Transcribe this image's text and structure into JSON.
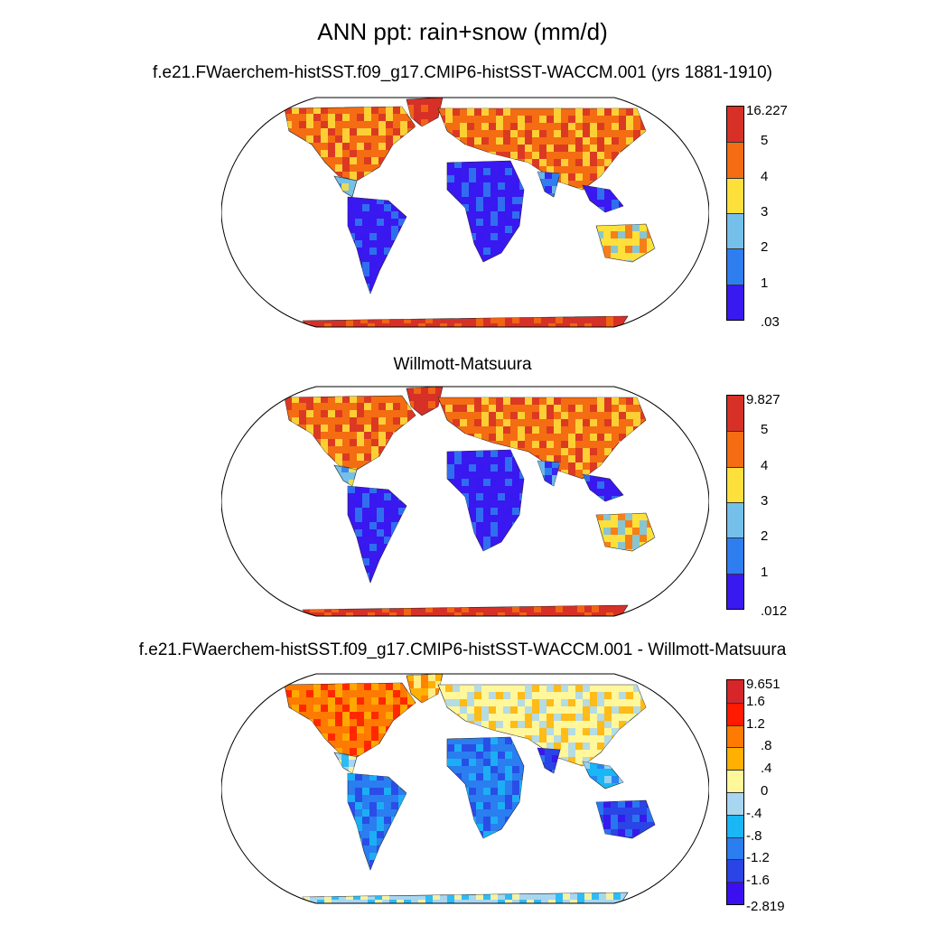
{
  "title": "ANN ppt: rain+snow (mm/d)",
  "panels": [
    {
      "title": "f.e21.FWaerchem-histSST.f09_g17.CMIP6-histSST-WACCM.001 (yrs 1881-1910)",
      "colorbar": {
        "labels": [
          "16.227",
          "5",
          "4",
          "3",
          "2",
          "1",
          ".03"
        ],
        "colors": [
          "#d73027",
          "#f46d12",
          "#fde03b",
          "#74c0ea",
          "#2f7ef0",
          "#3a18f0"
        ]
      }
    },
    {
      "title": "Willmott-Matsuura",
      "colorbar": {
        "labels": [
          "9.827",
          "5",
          "4",
          "3",
          "2",
          "1",
          ".012"
        ],
        "colors": [
          "#d73027",
          "#f46d12",
          "#fde03b",
          "#74c0ea",
          "#2f7ef0",
          "#3a18f0"
        ]
      }
    },
    {
      "title": "f.e21.FWaerchem-histSST.f09_g17.CMIP6-histSST-WACCM.001 - Willmott-Matsuura",
      "colorbar": {
        "labels": [
          "9.651",
          "1.6",
          "1.2",
          ".8",
          ".4",
          "0",
          "-.4",
          "-.8",
          "-1.2",
          "-1.6",
          "-2.819"
        ],
        "colors": [
          "#d7262a",
          "#ff1a00",
          "#ff7a00",
          "#ffb000",
          "#fff79a",
          "#a8d6f0",
          "#1ab6f5",
          "#2a7ef0",
          "#2a44e6",
          "#3a10f0"
        ]
      }
    }
  ]
}
